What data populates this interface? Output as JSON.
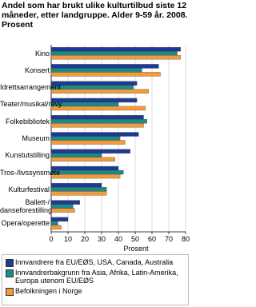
{
  "chart_data": {
    "type": "bar",
    "orientation": "horizontal",
    "title": "Andel som har brukt ulike kulturtilbud siste 12 måneder, etter landgruppe. Alder 9-59 år. 2008. Prosent",
    "categories": [
      "Kino",
      "Konsert",
      "Idrettsarrangement",
      "Teater/musikal/revy",
      "Folkebibliotek",
      "Museum",
      "Kunstutstilling",
      "Tros-/livssynsmøte",
      "Kulturfestival",
      "Ballett-/\ndanseforestilling",
      "Opera/operette"
    ],
    "series": [
      {
        "name": "Innvandrere fra EU/EØS, USA, Canada, Australia",
        "color": "#1f3a93",
        "values": [
          77,
          64,
          51,
          51,
          55,
          52,
          47,
          40,
          30,
          17,
          10
        ]
      },
      {
        "name": "Innvandrerbakgrunn fra Asia, Afrika, Latin-Amerika, Europa utenom EU/EØS",
        "color": "#1a8a8a",
        "values": [
          75,
          54,
          49,
          40,
          57,
          41,
          30,
          43,
          33,
          13,
          4
        ]
      },
      {
        "name": "Befolkningen i Norge",
        "color": "#f39a3a",
        "values": [
          77,
          65,
          58,
          56,
          55,
          44,
          38,
          41,
          33,
          14,
          6
        ]
      }
    ],
    "xlabel": "Prosent",
    "xlim": [
      0,
      80
    ],
    "xticks": [
      0,
      10,
      20,
      30,
      40,
      50,
      60,
      70,
      80
    ],
    "grid": true
  }
}
